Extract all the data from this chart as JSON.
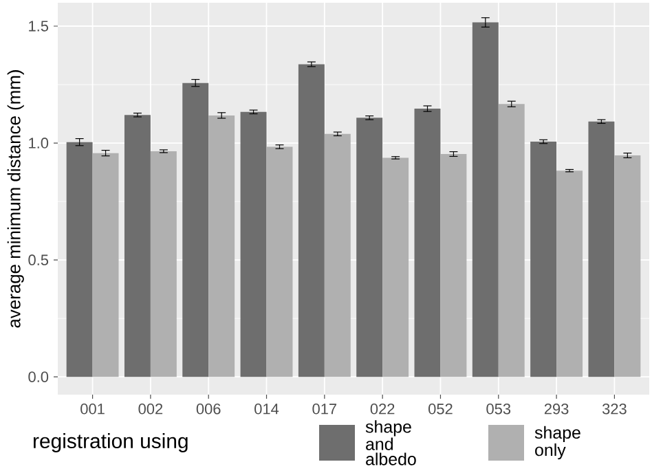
{
  "chart_data": {
    "type": "bar",
    "ylabel": "average minimum distance (mm)",
    "legend_title": "registration using",
    "categories": [
      "001",
      "002",
      "006",
      "014",
      "017",
      "022",
      "052",
      "053",
      "293",
      "323"
    ],
    "series": [
      {
        "name": "shape and albedo",
        "color": "#6e6e6e",
        "values": [
          1.004,
          1.12,
          1.257,
          1.133,
          1.337,
          1.108,
          1.147,
          1.516,
          1.006,
          1.092
        ],
        "errors": [
          0.015,
          0.008,
          0.015,
          0.008,
          0.01,
          0.008,
          0.012,
          0.02,
          0.008,
          0.008
        ]
      },
      {
        "name": "shape only",
        "color": "#b0b0b0",
        "values": [
          0.957,
          0.965,
          1.118,
          0.984,
          1.039,
          0.937,
          0.953,
          1.167,
          0.882,
          0.947
        ],
        "errors": [
          0.012,
          0.006,
          0.012,
          0.008,
          0.008,
          0.005,
          0.01,
          0.012,
          0.005,
          0.01
        ]
      }
    ],
    "ylim": [
      -0.076,
      1.6
    ],
    "yticks": [
      {
        "value": 0,
        "label": "0.0"
      },
      0.5,
      {
        "value": 1,
        "label": "1.0"
      },
      1.5
    ],
    "grid": true,
    "legend": "bottom"
  }
}
